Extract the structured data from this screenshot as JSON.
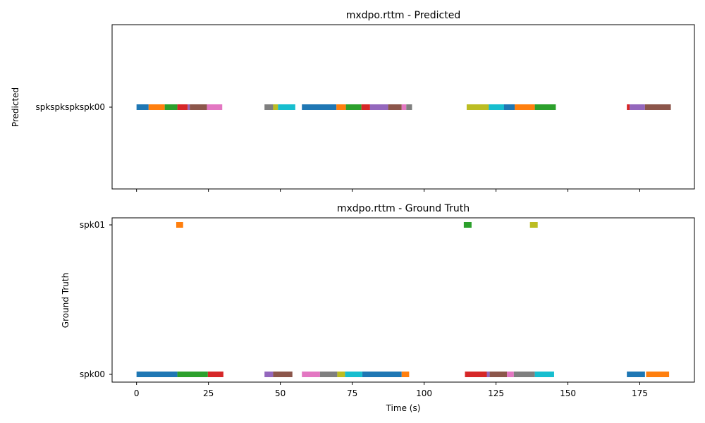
{
  "chart_data": [
    {
      "type": "timeline",
      "title": "mxdpo.rttm - Predicted",
      "xlabel": "",
      "ylabel": "Predicted",
      "xlim": [
        -8.5,
        194
      ],
      "x_ticks": [
        0,
        25,
        50,
        75,
        100,
        125,
        150,
        175
      ],
      "x_tick_labels_shown": false,
      "y_categories": [
        "spkspkspkspk00"
      ],
      "series": [
        {
          "color": "#1f77b4",
          "segments": [
            [
              0,
              4.2
            ],
            [
              57.5,
              69.5
            ],
            [
              122.5,
              128.5
            ]
          ]
        },
        {
          "color": "#ff7f0e",
          "segments": [
            [
              4.2,
              9.8
            ],
            [
              69.5,
              72.8
            ],
            [
              131.5,
              138.5
            ]
          ]
        },
        {
          "color": "#2ca02c",
          "segments": [
            [
              9.8,
              14.2
            ],
            [
              72.8,
              78.2
            ],
            [
              138.5,
              145.8
            ]
          ]
        },
        {
          "color": "#d62728",
          "segments": [
            [
              14.2,
              17.8
            ],
            [
              78.2,
              81.2
            ],
            [
              170.5,
              171.5
            ]
          ]
        },
        {
          "color": "#9467bd",
          "segments": [
            [
              17.8,
              18.5
            ],
            [
              81.2,
              87.5
            ],
            [
              171.5,
              176.8
            ]
          ]
        },
        {
          "color": "#8c564b",
          "segments": [
            [
              18.5,
              24.5
            ],
            [
              87.5,
              92.2
            ],
            [
              176.8,
              185.8
            ]
          ]
        },
        {
          "color": "#e377c2",
          "segments": [
            [
              24.5,
              29.8
            ],
            [
              92.2,
              93.8
            ]
          ]
        },
        {
          "color": "#7f7f7f",
          "segments": [
            [
              44.5,
              47.5
            ],
            [
              93.8,
              95.8
            ]
          ]
        },
        {
          "color": "#bcbd22",
          "segments": [
            [
              47.5,
              49.2
            ],
            [
              114.8,
              122.5
            ]
          ]
        },
        {
          "color": "#17becf",
          "segments": [
            [
              49.2,
              55.2
            ],
            [
              122.5,
              127.8
            ]
          ]
        },
        {
          "color": "#1f77b4",
          "segments": [
            [
              127.8,
              131.5
            ]
          ]
        }
      ]
    },
    {
      "type": "timeline",
      "title": "mxdpo.rttm - Ground Truth",
      "xlabel": "Time (s)",
      "ylabel": "Ground Truth",
      "xlim": [
        -8.5,
        194
      ],
      "x_ticks": [
        0,
        25,
        50,
        75,
        100,
        125,
        150,
        175
      ],
      "x_tick_labels": [
        "0",
        "25",
        "50",
        "75",
        "100",
        "125",
        "150",
        "175"
      ],
      "y_categories": [
        "spk00",
        "spk01"
      ],
      "series": [
        {
          "color": "#1f77b4",
          "category": "spk00",
          "segments": [
            [
              0,
              14.2
            ],
            [
              78.5,
              92.2
            ],
            [
              170.5,
              176.8
            ]
          ]
        },
        {
          "color": "#2ca02c",
          "category": "spk00",
          "segments": [
            [
              14.2,
              24.8
            ]
          ]
        },
        {
          "color": "#d62728",
          "category": "spk00",
          "segments": [
            [
              24.8,
              30.2
            ],
            [
              114.2,
              121.8
            ]
          ]
        },
        {
          "color": "#9467bd",
          "category": "spk00",
          "segments": [
            [
              44.5,
              47.5
            ],
            [
              121.8,
              122.8
            ]
          ]
        },
        {
          "color": "#8c564b",
          "category": "spk00",
          "segments": [
            [
              47.5,
              54.2
            ],
            [
              122.8,
              128.8
            ]
          ]
        },
        {
          "color": "#e377c2",
          "category": "spk00",
          "segments": [
            [
              57.5,
              63.8
            ],
            [
              128.8,
              131.2
            ]
          ]
        },
        {
          "color": "#7f7f7f",
          "category": "spk00",
          "segments": [
            [
              63.8,
              69.8
            ],
            [
              131.2,
              138.5
            ]
          ]
        },
        {
          "color": "#bcbd22",
          "category": "spk00",
          "segments": [
            [
              69.8,
              72.5
            ]
          ]
        },
        {
          "color": "#17becf",
          "category": "spk00",
          "segments": [
            [
              72.5,
              78.5
            ],
            [
              138.5,
              145.2
            ]
          ]
        },
        {
          "color": "#ff7f0e",
          "category": "spk00",
          "segments": [
            [
              92.2,
              94.8
            ],
            [
              177.2,
              185.2
            ]
          ]
        },
        {
          "color": "#ff7f0e",
          "category": "spk01",
          "segments": [
            [
              13.8,
              16.2
            ]
          ]
        },
        {
          "color": "#2ca02c",
          "category": "spk01",
          "segments": [
            [
              113.8,
              116.5
            ]
          ]
        },
        {
          "color": "#bcbd22",
          "category": "spk01",
          "segments": [
            [
              136.8,
              139.5
            ]
          ]
        }
      ]
    }
  ]
}
